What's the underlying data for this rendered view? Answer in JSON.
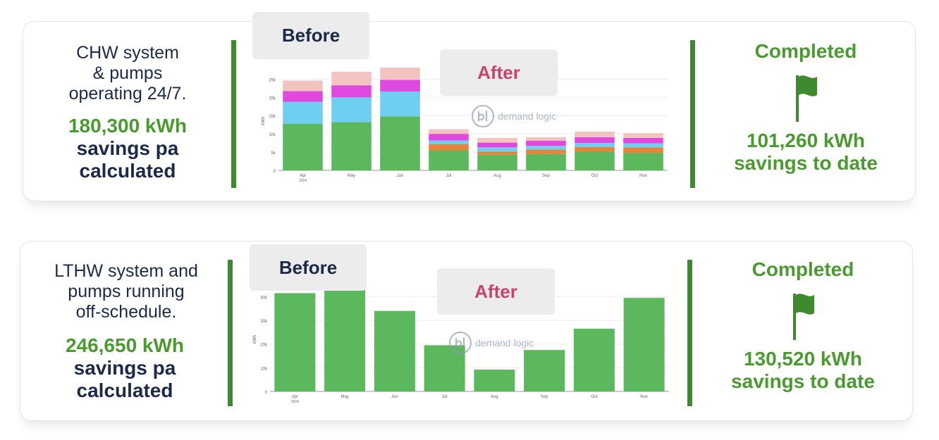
{
  "panels": [
    {
      "description": [
        "CHW system",
        "& pumps",
        "operating 24/7."
      ],
      "kwh_value": "180,300 kWh",
      "kwh_line2": "savings pa",
      "kwh_line3": "calculated",
      "status": "Completed",
      "to_date_value": "101,260 kWh",
      "to_date_label": "savings to date",
      "before_label": "Before",
      "after_label": "After",
      "watermark_text": "demand logic",
      "chart_data": {
        "type": "bar",
        "stacked": true,
        "categories": [
          "Apr",
          "May",
          "Jun",
          "Jul",
          "Aug",
          "Sep",
          "Oct",
          "Nov"
        ],
        "x_sublabel": "2024",
        "ylabel": "kWh",
        "yticks": [
          "0",
          "5k",
          "10k",
          "15k",
          "20k",
          "25k"
        ],
        "ylim": [
          0,
          27000
        ],
        "series": [
          {
            "color": "#5cb85c",
            "values": [
              12800,
              13200,
              14800,
              5500,
              4300,
              4500,
              5100,
              4800
            ]
          },
          {
            "color": "#e8833a",
            "values": [
              0,
              0,
              0,
              1700,
              800,
              1200,
              1300,
              1500
            ]
          },
          {
            "color": "#6ecff2",
            "values": [
              6000,
              6800,
              6800,
              1000,
              1200,
              1000,
              1100,
              1100
            ]
          },
          {
            "color": "#e048e0",
            "values": [
              2900,
              3300,
              3200,
              1800,
              1300,
              1400,
              1600,
              1500
            ]
          },
          {
            "color": "#f3c3c0",
            "values": [
              2900,
              3700,
              3500,
              1300,
              1300,
              1000,
              1500,
              1300
            ]
          }
        ]
      }
    },
    {
      "description": [
        "LTHW system and",
        "pumps running",
        "off-schedule."
      ],
      "kwh_value": "246,650 kWh",
      "kwh_line2": "savings pa",
      "kwh_line3": "calculated",
      "status": "Completed",
      "to_date_value": "130,520 kWh",
      "to_date_label": "savings to date",
      "before_label": "Before",
      "after_label": "After",
      "watermark_text": "demand logic",
      "chart_data": {
        "type": "bar",
        "categories": [
          "Apr",
          "May",
          "Jun",
          "Jul",
          "Aug",
          "Sep",
          "Oct",
          "Nov"
        ],
        "x_sublabel": "2024",
        "ylabel": "kWh",
        "yticks": [
          "0",
          "10k",
          "20k",
          "30k",
          "40k"
        ],
        "ylim": [
          0,
          44000
        ],
        "series": [
          {
            "color": "#5cb85c",
            "values": [
              41500,
              43000,
              34000,
              19500,
              9200,
              17500,
              26500,
              39500
            ]
          }
        ]
      }
    }
  ]
}
